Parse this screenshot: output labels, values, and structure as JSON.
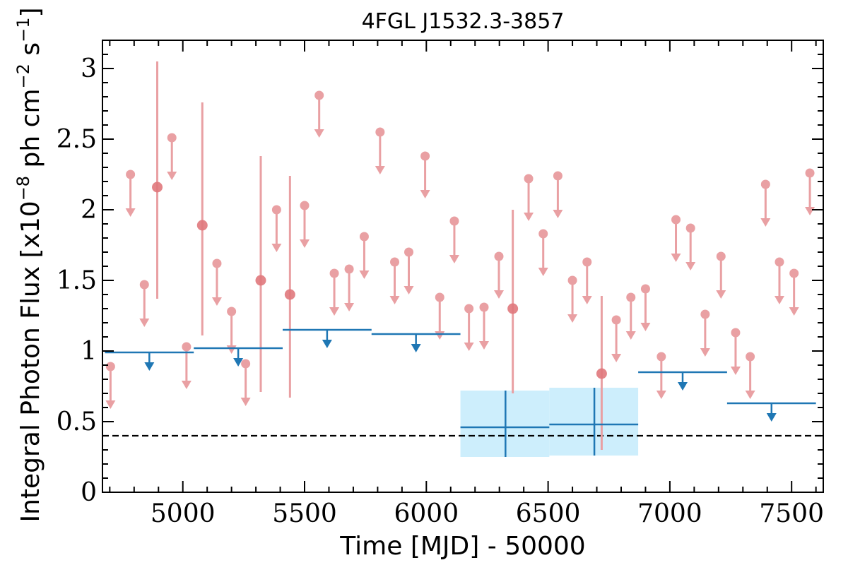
{
  "chart_data": {
    "type": "scatter",
    "title": "4FGL J1532.3-3857",
    "xlabel": "Time [MJD] - 50000",
    "ylabel_main": "Integral Photon Flux [x10",
    "ylabel_exp1": "−8",
    "ylabel_mid": " ph cm",
    "ylabel_exp2": "−2",
    "ylabel_mid2": " s",
    "ylabel_exp3": "−1",
    "ylabel_end": "]",
    "xlim": [
      4670,
      7630
    ],
    "ylim": [
      0,
      3.2
    ],
    "xticks": [
      5000,
      5500,
      6000,
      6500,
      7000,
      7500
    ],
    "xtick_labels": [
      "5000",
      "5500",
      "6000",
      "6500",
      "7000",
      "7500"
    ],
    "yticks": [
      0,
      0.5,
      1,
      1.5,
      2,
      2.5,
      3
    ],
    "ytick_labels": [
      "0",
      "0.5",
      "1",
      "1.5",
      "2",
      "2.5",
      "3"
    ],
    "reference_line": 0.4,
    "colors": {
      "short_bins": "#e9a0a3",
      "short_bins_detection": "#e0787c",
      "long_bins": "#1f77b4",
      "band": "#cdeefc",
      "refline": "#000000"
    },
    "short_bin_upper_limits": [
      {
        "x": 4703,
        "y": 0.89
      },
      {
        "x": 4785,
        "y": 2.25
      },
      {
        "x": 4842,
        "y": 1.47
      },
      {
        "x": 4955,
        "y": 2.51
      },
      {
        "x": 5015,
        "y": 1.03
      },
      {
        "x": 5140,
        "y": 1.62
      },
      {
        "x": 5200,
        "y": 1.28
      },
      {
        "x": 5258,
        "y": 0.91
      },
      {
        "x": 5385,
        "y": 2.0
      },
      {
        "x": 5500,
        "y": 2.03
      },
      {
        "x": 5560,
        "y": 2.81
      },
      {
        "x": 5622,
        "y": 1.55
      },
      {
        "x": 5683,
        "y": 1.58
      },
      {
        "x": 5745,
        "y": 1.81
      },
      {
        "x": 5810,
        "y": 2.55
      },
      {
        "x": 5870,
        "y": 1.63
      },
      {
        "x": 5928,
        "y": 1.7
      },
      {
        "x": 5995,
        "y": 2.38
      },
      {
        "x": 6055,
        "y": 1.38
      },
      {
        "x": 6115,
        "y": 1.92
      },
      {
        "x": 6175,
        "y": 1.3
      },
      {
        "x": 6237,
        "y": 1.31
      },
      {
        "x": 6298,
        "y": 1.67
      },
      {
        "x": 6420,
        "y": 2.22
      },
      {
        "x": 6480,
        "y": 1.83
      },
      {
        "x": 6540,
        "y": 2.24
      },
      {
        "x": 6600,
        "y": 1.5
      },
      {
        "x": 6660,
        "y": 1.63
      },
      {
        "x": 6780,
        "y": 1.22
      },
      {
        "x": 6840,
        "y": 1.38
      },
      {
        "x": 6900,
        "y": 1.44
      },
      {
        "x": 6965,
        "y": 0.96
      },
      {
        "x": 7025,
        "y": 1.93
      },
      {
        "x": 7085,
        "y": 1.87
      },
      {
        "x": 7145,
        "y": 1.26
      },
      {
        "x": 7210,
        "y": 1.67
      },
      {
        "x": 7270,
        "y": 1.13
      },
      {
        "x": 7330,
        "y": 0.96
      },
      {
        "x": 7393,
        "y": 2.18
      },
      {
        "x": 7450,
        "y": 1.63
      },
      {
        "x": 7510,
        "y": 1.55
      },
      {
        "x": 7575,
        "y": 2.26
      }
    ],
    "short_bin_detections": [
      {
        "x": 4895,
        "y": 2.16,
        "y_low": 1.37,
        "y_high": 3.05
      },
      {
        "x": 5080,
        "y": 1.89,
        "y_low": 1.11,
        "y_high": 2.76
      },
      {
        "x": 5320,
        "y": 1.5,
        "y_low": 0.71,
        "y_high": 2.38
      },
      {
        "x": 5440,
        "y": 1.4,
        "y_low": 0.67,
        "y_high": 2.24
      },
      {
        "x": 6355,
        "y": 1.3,
        "y_low": 0.7,
        "y_high": 2.0
      },
      {
        "x": 6720,
        "y": 0.84,
        "y_low": 0.3,
        "y_high": 1.39
      }
    ],
    "long_bin_upper_limits": [
      {
        "x_start": 4680,
        "x_end": 5045,
        "y": 0.99
      },
      {
        "x_start": 5045,
        "x_end": 5410,
        "y": 1.02
      },
      {
        "x_start": 5410,
        "x_end": 5775,
        "y": 1.15
      },
      {
        "x_start": 5775,
        "x_end": 6140,
        "y": 1.12
      },
      {
        "x_start": 6870,
        "x_end": 7235,
        "y": 0.85
      },
      {
        "x_start": 7235,
        "x_end": 7600,
        "y": 0.63
      }
    ],
    "long_bin_detections": [
      {
        "x_start": 6140,
        "x_end": 6505,
        "x": 6325,
        "y": 0.46,
        "y_low": 0.25,
        "y_high": 0.72
      },
      {
        "x_start": 6505,
        "x_end": 6870,
        "x": 6690,
        "y": 0.48,
        "y_low": 0.26,
        "y_high": 0.74
      }
    ]
  }
}
